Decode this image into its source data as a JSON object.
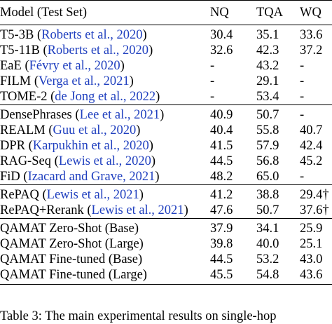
{
  "table": {
    "headers": {
      "model": "Model (Test Set)",
      "nq": "NQ",
      "tqa": "TQA",
      "wq": "WQ"
    },
    "groups": [
      {
        "rows": [
          {
            "model": "T5-3B",
            "cite": "Roberts et al., 2020",
            "nq": "30.4",
            "tqa": "35.1",
            "wq": "33.6"
          },
          {
            "model": "T5-11B",
            "cite": "Roberts et al., 2020",
            "nq": "32.6",
            "tqa": "42.3",
            "wq": "37.2"
          },
          {
            "model": "EaE",
            "cite": "Févry et al., 2020",
            "nq": "-",
            "tqa": "43.2",
            "wq": "-"
          },
          {
            "model": "FILM",
            "cite": "Verga et al., 2021",
            "nq": "-",
            "tqa": "29.1",
            "wq": "-"
          },
          {
            "model": "TOME-2",
            "cite": "de Jong et al., 2022",
            "nq": "-",
            "tqa": "53.4",
            "wq": "-"
          }
        ]
      },
      {
        "rows": [
          {
            "model": "DensePhrases",
            "cite": "Lee et al., 2021",
            "nq": "40.9",
            "tqa": "50.7",
            "wq": "-"
          },
          {
            "model": "REALM",
            "cite": "Guu et al., 2020",
            "nq": "40.4",
            "tqa": "55.8",
            "wq": "40.7"
          },
          {
            "model": "DPR",
            "cite": "Karpukhin et al., 2020",
            "nq": "41.5",
            "tqa": "57.9",
            "wq": "42.4"
          },
          {
            "model": "RAG-Seq",
            "cite": "Lewis et al., 2020",
            "nq": "44.5",
            "tqa": "56.8",
            "wq": "45.2"
          },
          {
            "model": "FiD",
            "cite": "Izacard and Grave, 2021",
            "nq": "48.2",
            "tqa": "65.0",
            "wq": "-"
          }
        ]
      },
      {
        "rows": [
          {
            "model": "RePAQ",
            "cite": "Lewis et al., 2021",
            "nq": "41.2",
            "tqa": "38.8",
            "wq": "29.4†"
          },
          {
            "model": "RePAQ+Rerank",
            "cite": "Lewis et al., 2021",
            "nq": "47.6",
            "tqa": "50.7",
            "wq": "37.6†"
          }
        ]
      },
      {
        "rows": [
          {
            "model": "QAMAT Zero-Shot (Base)",
            "cite": "",
            "nq": "37.9",
            "tqa": "34.1",
            "wq": "25.9"
          },
          {
            "model": "QAMAT Zero-Shot (Large)",
            "cite": "",
            "nq": "39.8",
            "tqa": "40.0",
            "wq": "25.1"
          },
          {
            "model": "QAMAT Fine-tuned (Base)",
            "cite": "",
            "nq": "44.5",
            "tqa": "53.2",
            "wq": "43.0"
          },
          {
            "model": "QAMAT Fine-tuned (Large)",
            "cite": "",
            "nq": "45.5",
            "tqa": "54.8",
            "wq": "43.6"
          }
        ]
      }
    ]
  },
  "caption": "Table 3: The main experimental results on single-hop"
}
